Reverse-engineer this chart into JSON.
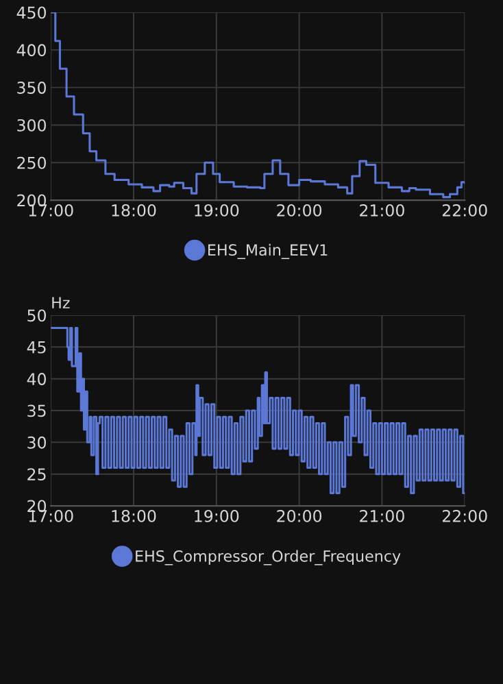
{
  "chart_data": [
    {
      "type": "step",
      "legend": "bottom",
      "grid": true,
      "x": [
        17.0,
        17.055,
        17.11,
        17.19,
        17.28,
        17.39,
        17.47,
        17.55,
        17.66,
        17.77,
        17.94,
        18.1,
        18.24,
        18.32,
        18.43,
        18.49,
        18.6,
        18.7,
        18.76,
        18.86,
        18.96,
        19.04,
        19.21,
        19.37,
        19.53,
        19.58,
        19.68,
        19.77,
        19.87,
        19.95,
        20.0,
        20.14,
        20.31,
        20.47,
        20.58,
        20.64,
        20.73,
        20.81,
        20.92,
        21.08,
        21.24,
        21.33,
        21.41,
        21.58,
        21.74,
        21.82,
        21.91,
        21.96,
        22.0
      ],
      "series": [
        {
          "name": "EHS_Main_EEV1",
          "color": "#5b78d6",
          "values": [
            450,
            412,
            375,
            338,
            314,
            289,
            265,
            253,
            235,
            227,
            221,
            217,
            212,
            220,
            218,
            223,
            216,
            209,
            235,
            250,
            235,
            224,
            218,
            217,
            216,
            235,
            253,
            235,
            220,
            220,
            227,
            225,
            221,
            217,
            209,
            232,
            252,
            247,
            223,
            217,
            212,
            216,
            214,
            208,
            204,
            208,
            217,
            224,
            223
          ]
        }
      ],
      "xlim": [
        17,
        22
      ],
      "xticks": [
        {
          "value": 17,
          "label": "17:00"
        },
        {
          "value": 18,
          "label": "18:00"
        },
        {
          "value": 19,
          "label": "19:00"
        },
        {
          "value": 20,
          "label": "20:00"
        },
        {
          "value": 21,
          "label": "21:00"
        },
        {
          "value": 22,
          "label": "22:00"
        }
      ],
      "ylim": [
        200,
        450
      ],
      "yticks": [
        200,
        250,
        300,
        350,
        400,
        450
      ]
    },
    {
      "type": "step",
      "legend": "bottom",
      "grid": true,
      "ylabel": "Hz",
      "x": [
        17.0,
        17.2,
        17.215,
        17.235,
        17.255,
        17.3,
        17.32,
        17.345,
        17.365,
        17.38,
        17.4,
        17.42,
        17.44,
        17.47,
        17.49,
        17.52,
        17.55,
        17.57,
        17.59,
        17.625,
        17.66,
        17.695,
        17.73,
        17.765,
        17.8,
        17.835,
        17.87,
        17.905,
        17.94,
        17.975,
        18.01,
        18.045,
        18.08,
        18.115,
        18.15,
        18.185,
        18.22,
        18.255,
        18.29,
        18.325,
        18.36,
        18.395,
        18.43,
        18.465,
        18.5,
        18.535,
        18.57,
        18.605,
        18.64,
        18.675,
        18.71,
        18.745,
        18.76,
        18.78,
        18.8,
        18.835,
        18.87,
        18.905,
        18.94,
        18.975,
        19.01,
        19.045,
        19.08,
        19.115,
        19.15,
        19.185,
        19.22,
        19.255,
        19.29,
        19.325,
        19.36,
        19.395,
        19.43,
        19.465,
        19.5,
        19.52,
        19.55,
        19.575,
        19.59,
        19.61,
        19.645,
        19.68,
        19.715,
        19.75,
        19.785,
        19.82,
        19.855,
        19.89,
        19.925,
        19.96,
        19.995,
        20.03,
        20.065,
        20.1,
        20.135,
        20.17,
        20.205,
        20.24,
        20.275,
        20.31,
        20.345,
        20.38,
        20.415,
        20.45,
        20.485,
        20.52,
        20.555,
        20.59,
        20.625,
        20.65,
        20.685,
        20.72,
        20.755,
        20.79,
        20.825,
        20.86,
        20.895,
        20.93,
        20.965,
        21.0,
        21.035,
        21.07,
        21.105,
        21.14,
        21.175,
        21.21,
        21.245,
        21.28,
        21.315,
        21.35,
        21.385,
        21.42,
        21.455,
        21.49,
        21.525,
        21.56,
        21.595,
        21.63,
        21.665,
        21.7,
        21.735,
        21.77,
        21.805,
        21.84,
        21.875,
        21.91,
        21.945,
        21.98,
        22.0
      ],
      "series": [
        {
          "name": "EHS_Compressor_Order_Frequency",
          "color": "#5b78d6",
          "values": [
            48,
            45,
            43,
            48,
            42,
            48,
            38,
            44,
            35,
            40,
            32,
            38,
            30,
            34,
            28,
            34,
            25,
            33,
            34,
            26,
            34,
            26,
            34,
            26,
            34,
            26,
            34,
            26,
            34,
            26,
            34,
            26,
            34,
            26,
            34,
            26,
            34,
            26,
            34,
            26,
            34,
            26,
            32,
            24,
            31,
            23,
            31,
            23,
            33,
            25,
            33,
            28,
            39,
            31,
            37,
            28,
            36,
            28,
            36,
            26,
            34,
            26,
            34,
            26,
            34,
            25,
            33,
            25,
            34,
            27,
            35,
            27,
            35,
            29,
            37,
            31,
            39,
            33,
            41,
            33,
            37,
            29,
            37,
            29,
            37,
            29,
            37,
            28,
            35,
            28,
            35,
            27,
            34,
            26,
            34,
            26,
            33,
            25,
            33,
            25,
            30,
            22,
            30,
            22,
            30,
            23,
            34,
            28,
            39,
            31,
            39,
            30,
            37,
            28,
            35,
            26,
            33,
            25,
            33,
            25,
            33,
            25,
            33,
            25,
            33,
            25,
            33,
            23,
            31,
            22,
            31,
            24,
            32,
            24,
            32,
            24,
            32,
            24,
            32,
            24,
            32,
            24,
            32,
            24,
            32,
            23,
            31,
            22,
            22
          ]
        }
      ],
      "xlim": [
        17,
        22
      ],
      "xticks": [
        {
          "value": 17,
          "label": "17:00"
        },
        {
          "value": 18,
          "label": "18:00"
        },
        {
          "value": 19,
          "label": "19:00"
        },
        {
          "value": 20,
          "label": "20:00"
        },
        {
          "value": 21,
          "label": "21:00"
        },
        {
          "value": 22,
          "label": "22:00"
        }
      ],
      "ylim": [
        20,
        50
      ],
      "yticks": [
        20,
        25,
        30,
        35,
        40,
        45,
        50
      ]
    }
  ]
}
